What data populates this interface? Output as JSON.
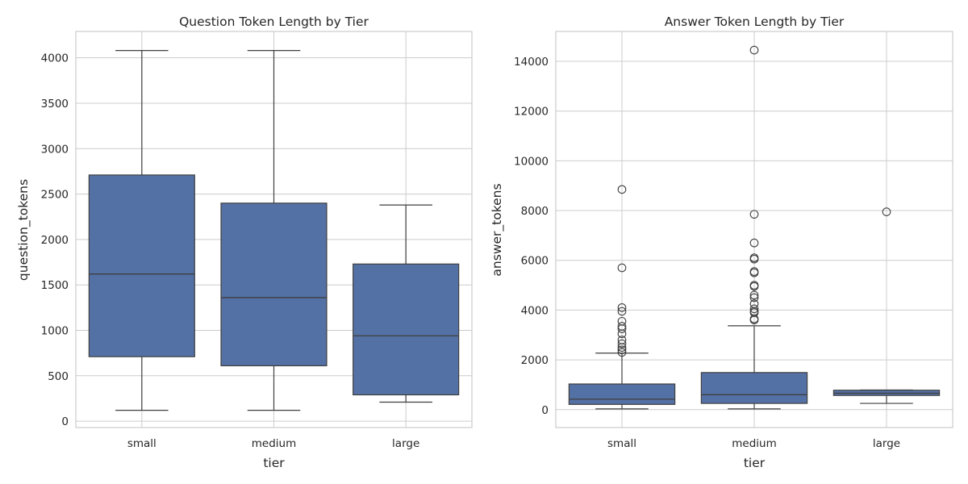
{
  "chart_data": [
    {
      "type": "box",
      "title": "Question Token Length by Tier",
      "xlabel": "tier",
      "ylabel": "question_tokens",
      "ylim": [
        -70,
        4290
      ],
      "yticks": [
        0,
        500,
        1000,
        1500,
        2000,
        2500,
        3000,
        3500,
        4000
      ],
      "color": "#5471a5",
      "categories": [
        "small",
        "medium",
        "large"
      ],
      "boxes": [
        {
          "category": "small",
          "whislo": 120,
          "q1": 710,
          "median": 1620,
          "q3": 2710,
          "whishi": 4080,
          "fliers": []
        },
        {
          "category": "medium",
          "whislo": 120,
          "q1": 610,
          "median": 1360,
          "q3": 2400,
          "whishi": 4080,
          "fliers": []
        },
        {
          "category": "large",
          "whislo": 210,
          "q1": 290,
          "median": 940,
          "q3": 1730,
          "whishi": 2380,
          "fliers": []
        }
      ]
    },
    {
      "type": "box",
      "title": "Answer Token Length by Tier",
      "xlabel": "tier",
      "ylabel": "answer_tokens",
      "ylim": [
        -720,
        15200
      ],
      "yticks": [
        0,
        2000,
        4000,
        6000,
        8000,
        10000,
        12000,
        14000
      ],
      "color": "#5471a5",
      "categories": [
        "small",
        "medium",
        "large"
      ],
      "boxes": [
        {
          "category": "small",
          "whislo": 30,
          "q1": 210,
          "median": 420,
          "q3": 1030,
          "whishi": 2270,
          "fliers": [
            2300,
            2400,
            2500,
            2650,
            2800,
            3050,
            3250,
            3350,
            3550,
            3950,
            4100,
            5700,
            8850
          ]
        },
        {
          "category": "medium",
          "whislo": 30,
          "q1": 250,
          "median": 600,
          "q3": 1490,
          "whishi": 3370,
          "fliers": [
            3600,
            3650,
            3900,
            3950,
            4050,
            4250,
            4500,
            4600,
            4950,
            5000,
            5500,
            5550,
            6050,
            6100,
            6700,
            7850,
            14450
          ]
        },
        {
          "category": "large",
          "whislo": 250,
          "q1": 570,
          "median": 660,
          "q3": 780,
          "whishi": 790,
          "fliers": [
            7950
          ]
        }
      ]
    }
  ]
}
